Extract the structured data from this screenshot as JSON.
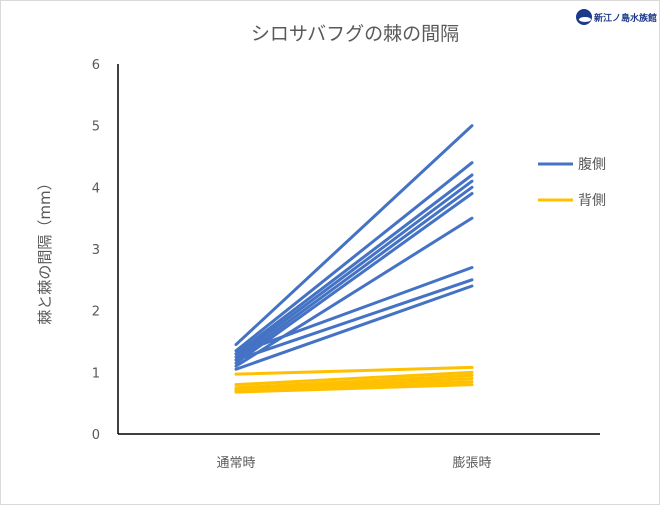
{
  "logo": {
    "text": "新江ノ島水族館",
    "icon": "aquarium-logo-icon"
  },
  "chart_data": {
    "type": "line",
    "title": "シロサバフグの棘の間隔",
    "xlabel": "",
    "ylabel": "棘と棘の間隔（mm）",
    "categories": [
      "通常時",
      "膨張時"
    ],
    "ylim": [
      0,
      6
    ],
    "yticks": [
      0,
      1,
      2,
      3,
      4,
      5,
      6
    ],
    "grid": false,
    "legend_position": "right",
    "series": [
      {
        "name": "腹側",
        "color": "#4472c4",
        "lines": [
          [
            1.45,
            5.0
          ],
          [
            1.35,
            4.4
          ],
          [
            1.3,
            4.2
          ],
          [
            1.25,
            4.1
          ],
          [
            1.2,
            4.0
          ],
          [
            1.15,
            3.9
          ],
          [
            1.1,
            3.5
          ],
          [
            1.3,
            2.7
          ],
          [
            1.2,
            2.5
          ],
          [
            1.05,
            2.4
          ]
        ]
      },
      {
        "name": "背側",
        "color": "#ffc000",
        "lines": [
          [
            0.97,
            1.08
          ],
          [
            0.8,
            1.0
          ],
          [
            0.75,
            0.95
          ],
          [
            0.72,
            0.9
          ],
          [
            0.7,
            0.85
          ],
          [
            0.68,
            0.8
          ]
        ]
      }
    ]
  }
}
